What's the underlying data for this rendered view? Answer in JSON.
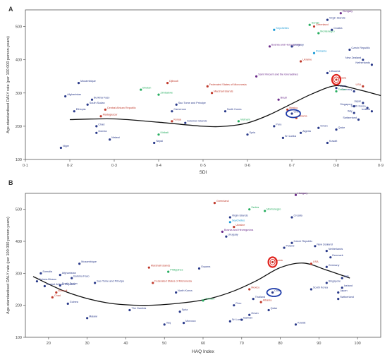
{
  "chart_data": [
    {
      "panel_letter": "A",
      "type": "scatter",
      "xlabel": "SDI",
      "ylabel": "Age-standardised DALY rate (per 100 000 person-years)",
      "xlim": [
        0.1,
        0.9
      ],
      "ylim": [
        100,
        550
      ],
      "xticks": [
        "0·1",
        "0·2",
        "0·3",
        "0·4",
        "0·5",
        "0·6",
        "0·7",
        "0·8",
        "0·9"
      ],
      "yticks": [
        "100",
        "200",
        "300",
        "400",
        "500"
      ],
      "grid": false,
      "points": [
        {
          "label": "Niger",
          "x": 0.18,
          "y": 135,
          "color": "#2a3a8a"
        },
        {
          "label": "Afghanistan",
          "x": 0.19,
          "y": 290,
          "color": "#2a3a8a"
        },
        {
          "label": "Ethiopia",
          "x": 0.21,
          "y": 245,
          "color": "#2a3a8a"
        },
        {
          "label": "Mozambique",
          "x": 0.22,
          "y": 330,
          "color": "#2a3a8a"
        },
        {
          "label": "Burkina Faso",
          "x": 0.25,
          "y": 280,
          "color": "#2a3a8a"
        },
        {
          "label": "South Sudan",
          "x": 0.24,
          "y": 265,
          "color": "#2a3a8a"
        },
        {
          "label": "Madagascar",
          "x": 0.27,
          "y": 230,
          "color": "#c0392b"
        },
        {
          "label": "Central African Republic",
          "x": 0.28,
          "y": 250,
          "color": "#c0392b"
        },
        {
          "label": "Guinea",
          "x": 0.26,
          "y": 180,
          "color": "#2a3a8a"
        },
        {
          "label": "Malawi",
          "x": 0.29,
          "y": 160,
          "color": "#2a3a8a"
        },
        {
          "label": "Chad",
          "x": 0.26,
          "y": 200,
          "color": "#2a3a8a"
        },
        {
          "label": "Bhutan",
          "x": 0.36,
          "y": 310,
          "color": "#27ae60"
        },
        {
          "label": "Djibouti",
          "x": 0.42,
          "y": 330,
          "color": "#c0392b"
        },
        {
          "label": "Sao Tome and Principe",
          "x": 0.44,
          "y": 265,
          "color": "#2a3a8a"
        },
        {
          "label": "Solomon Islands",
          "x": 0.46,
          "y": 210,
          "color": "#2a3a8a"
        },
        {
          "label": "Kiribati",
          "x": 0.4,
          "y": 175,
          "color": "#27ae60"
        },
        {
          "label": "Nepal",
          "x": 0.39,
          "y": 150,
          "color": "#2a3a8a"
        },
        {
          "label": "Federated States of Micronesia",
          "x": 0.51,
          "y": 320,
          "color": "#c0392b"
        },
        {
          "label": "Marshall Islands",
          "x": 0.52,
          "y": 300,
          "color": "#c0392b"
        },
        {
          "label": "North Korea",
          "x": 0.55,
          "y": 245,
          "color": "#2a3a8a"
        },
        {
          "label": "Saint Vincent and the Grenadines",
          "x": 0.62,
          "y": 350,
          "color": "#6a2a8a"
        },
        {
          "label": "Bosnia and Herzegovina",
          "x": 0.65,
          "y": 440,
          "color": "#6a2a8a"
        },
        {
          "label": "Seychelles",
          "x": 0.66,
          "y": 490,
          "color": "#1a9ad6"
        },
        {
          "label": "Uruguay",
          "x": 0.7,
          "y": 440,
          "color": "#2a3a8a"
        },
        {
          "label": "Ukraine",
          "x": 0.72,
          "y": 395,
          "color": "#c0392b"
        },
        {
          "label": "Serbia",
          "x": 0.74,
          "y": 505,
          "color": "#27ae60"
        },
        {
          "label": "Montenegro",
          "x": 0.76,
          "y": 480,
          "color": "#27ae60"
        },
        {
          "label": "Virgin Islands",
          "x": 0.78,
          "y": 520,
          "color": "#2a3a8a"
        },
        {
          "label": "Croatia",
          "x": 0.79,
          "y": 490,
          "color": "#2a3a8a"
        },
        {
          "label": "Greenland",
          "x": 0.75,
          "y": 500,
          "color": "#c0392b"
        },
        {
          "label": "Hungary",
          "x": 0.81,
          "y": 540,
          "color": "#6a2a8a"
        },
        {
          "label": "Romania",
          "x": 0.75,
          "y": 420,
          "color": "#1a9ad6"
        },
        {
          "label": "Czech Republic",
          "x": 0.83,
          "y": 430,
          "color": "#2a3a8a"
        },
        {
          "label": "New Zealand",
          "x": 0.86,
          "y": 400,
          "color": "#2a3a8a"
        },
        {
          "label": "Netherlands",
          "x": 0.88,
          "y": 385,
          "color": "#2a3a8a"
        },
        {
          "label": "Germany",
          "x": 0.84,
          "y": 305,
          "color": "#2a3a8a"
        },
        {
          "label": "USA",
          "x": 0.86,
          "y": 320,
          "color": "#c0392b"
        },
        {
          "label": "Japan",
          "x": 0.86,
          "y": 270,
          "color": "#2a3a8a"
        },
        {
          "label": "Singapore",
          "x": 0.84,
          "y": 260,
          "color": "#2a3a8a"
        },
        {
          "label": "South Korea",
          "x": 0.87,
          "y": 255,
          "color": "#2a3a8a"
        },
        {
          "label": "Iceland",
          "x": 0.88,
          "y": 245,
          "color": "#2a3a8a"
        },
        {
          "label": "Switzerland",
          "x": 0.85,
          "y": 220,
          "color": "#2a3a8a"
        },
        {
          "label": "Italy",
          "x": 0.84,
          "y": 240,
          "color": "#2a3a8a"
        },
        {
          "label": "Taiwan",
          "x": 0.8,
          "y": 305,
          "color": "#27ae60"
        },
        {
          "label": "Lithuania",
          "x": 0.78,
          "y": 360,
          "color": "#2a3a8a"
        },
        {
          "label": "Peru",
          "x": 0.66,
          "y": 200,
          "color": "#2a3a8a"
        },
        {
          "label": "Sri Lanka",
          "x": 0.68,
          "y": 165,
          "color": "#2a3a8a"
        },
        {
          "label": "Albania",
          "x": 0.71,
          "y": 225,
          "color": "#c0392b"
        },
        {
          "label": "Algeria",
          "x": 0.72,
          "y": 180,
          "color": "#2a3a8a"
        },
        {
          "label": "Oman",
          "x": 0.76,
          "y": 195,
          "color": "#2a3a8a"
        },
        {
          "label": "Kuwait",
          "x": 0.78,
          "y": 150,
          "color": "#2a3a8a"
        },
        {
          "label": "Qatar",
          "x": 0.8,
          "y": 190,
          "color": "#2a3a8a"
        },
        {
          "label": "China",
          "x": 0.7,
          "y": 238,
          "color": "#2a3a8a"
        },
        {
          "label": "Mexico",
          "x": 0.69,
          "y": 250,
          "color": "#c0392b"
        },
        {
          "label": "Brazil",
          "x": 0.67,
          "y": 280,
          "color": "#6a2a8a"
        },
        {
          "label": "Russia",
          "x": 0.8,
          "y": 340,
          "color": "#c0392b"
        },
        {
          "label": "Poland",
          "x": 0.8,
          "y": 315,
          "color": "#2a3a8a"
        },
        {
          "label": "Vietnam",
          "x": 0.58,
          "y": 215,
          "color": "#27ae60"
        },
        {
          "label": "Syria",
          "x": 0.6,
          "y": 175,
          "color": "#2a3a8a"
        },
        {
          "label": "Kenya",
          "x": 0.43,
          "y": 215,
          "color": "#c0392b"
        },
        {
          "label": "Cameroon",
          "x": 0.43,
          "y": 245,
          "color": "#2a3a8a"
        },
        {
          "label": "Zimbabwe",
          "x": 0.4,
          "y": 295,
          "color": "#27ae60"
        }
      ],
      "labels": [
        "Niger",
        "Afghanistan",
        "Ethiopia",
        "Mozambique",
        "Burkina Faso",
        "South Sudan",
        "Madagascar",
        "Central African Republic",
        "Guinea",
        "Malawi",
        "Chad",
        "Bhutan",
        "Djibouti",
        "Sao Tome and Principe",
        "Solomon Islands",
        "Kiribati",
        "Nepal",
        "Federated States of Micronesia",
        "Marshall Islands",
        "North Korea",
        "Saint Vincent and the Grenadines",
        "Bosnia and Herzegovina",
        "Seychelles",
        "Uruguay",
        "Ukraine",
        "Serbia",
        "Montenegro",
        "Virgin Islands",
        "Croatia",
        "Greenland",
        "Hungary",
        "Romania",
        "Czech Republic",
        "New Zealand",
        "Netherlands",
        "Germany",
        "USA",
        "Japan",
        "Singapore",
        "South Korea",
        "Iceland",
        "Switzerland",
        "Italy",
        "Taiwan",
        "Lithuania",
        "Peru",
        "Sri Lanka",
        "Albania",
        "Algeria",
        "Oman",
        "Kuwait",
        "Qatar",
        "China",
        "Mexico",
        "Brazil",
        "Russia",
        "Poland",
        "Vietnam",
        "Syria",
        "Kenya",
        "Cameroon",
        "Zimbabwe"
      ],
      "trend_curve": {
        "x": [
          0.2,
          0.3,
          0.4,
          0.5,
          0.55,
          0.6,
          0.65,
          0.7,
          0.75,
          0.8,
          0.85,
          0.9
        ],
        "y": [
          220,
          222,
          212,
          200,
          200,
          210,
          235,
          268,
          300,
          322,
          310,
          292
        ]
      },
      "highlights": [
        {
          "country": "China",
          "style": "ellipse",
          "color": "#1c3aa9"
        },
        {
          "country": "Russia",
          "style": "ellipse",
          "color": "#e0211b"
        }
      ]
    },
    {
      "panel_letter": "B",
      "type": "scatter",
      "xlabel": "HAQ Index",
      "ylabel": "Age-standardised DALY rate (per 100 000 person-years)",
      "xlim": [
        14,
        106
      ],
      "ylim": [
        100,
        550
      ],
      "xticks": [
        "20",
        "30",
        "40",
        "50",
        "60",
        "70",
        "80",
        "90",
        "100"
      ],
      "yticks": [
        "100",
        "200",
        "300",
        "400",
        "500"
      ],
      "grid": false,
      "points": [
        {
          "label": "Somalia",
          "x": 18,
          "y": 300,
          "color": "#2a3a8a"
        },
        {
          "label": "Afghanistan",
          "x": 23,
          "y": 295,
          "color": "#2a3a8a"
        },
        {
          "label": "Mozambique",
          "x": 28,
          "y": 330,
          "color": "#2a3a8a"
        },
        {
          "label": "Central African Republic",
          "x": 19,
          "y": 260,
          "color": "#2a3a8a"
        },
        {
          "label": "Guinea-Bissau",
          "x": 17,
          "y": 275,
          "color": "#2a3a8a"
        },
        {
          "label": "Burkina Faso",
          "x": 26,
          "y": 285,
          "color": "#2a3a8a"
        },
        {
          "label": "South Sudan",
          "x": 23,
          "y": 262,
          "color": "#2a3a8a"
        },
        {
          "label": "Burundi",
          "x": 22,
          "y": 240,
          "color": "#c0392b"
        },
        {
          "label": "Chad",
          "x": 21,
          "y": 225,
          "color": "#c0392b"
        },
        {
          "label": "Guinea",
          "x": 25,
          "y": 205,
          "color": "#2a3a8a"
        },
        {
          "label": "Malawi",
          "x": 30,
          "y": 160,
          "color": "#2a3a8a"
        },
        {
          "label": "Sao Tome and Principe",
          "x": 32,
          "y": 270,
          "color": "#2a3a8a"
        },
        {
          "label": "Marshall Islands",
          "x": 46,
          "y": 318,
          "color": "#c0392b"
        },
        {
          "label": "Federated States of Micronesia",
          "x": 47,
          "y": 270,
          "color": "#c0392b"
        },
        {
          "label": "The Gambia",
          "x": 41,
          "y": 185,
          "color": "#2a3a8a"
        },
        {
          "label": "Philippines",
          "x": 51,
          "y": 305,
          "color": "#27ae60"
        },
        {
          "label": "North Korea",
          "x": 53,
          "y": 240,
          "color": "#2a3a8a"
        },
        {
          "label": "Guyana",
          "x": 59,
          "y": 315,
          "color": "#2a3a8a"
        },
        {
          "label": "Greenland",
          "x": 63,
          "y": 520,
          "color": "#c0392b"
        },
        {
          "label": "Virgin Islands",
          "x": 67,
          "y": 475,
          "color": "#2a3a8a"
        },
        {
          "label": "Serbia",
          "x": 72,
          "y": 500,
          "color": "#27ae60"
        },
        {
          "label": "Montenegro",
          "x": 76,
          "y": 495,
          "color": "#27ae60"
        },
        {
          "label": "Hungary",
          "x": 84,
          "y": 545,
          "color": "#6a2a8a"
        },
        {
          "label": "Croatia",
          "x": 83,
          "y": 475,
          "color": "#2a3a8a"
        },
        {
          "label": "Seychelles",
          "x": 67,
          "y": 460,
          "color": "#1a9ad6"
        },
        {
          "label": "Ukraine",
          "x": 68,
          "y": 445,
          "color": "#c0392b"
        },
        {
          "label": "Bosnia and Herzegovina",
          "x": 65,
          "y": 430,
          "color": "#6a2a8a"
        },
        {
          "label": "Uruguay",
          "x": 66,
          "y": 415,
          "color": "#2a3a8a"
        },
        {
          "label": "Czech Republic",
          "x": 83,
          "y": 395,
          "color": "#2a3a8a"
        },
        {
          "label": "Poland",
          "x": 81,
          "y": 380,
          "color": "#2a3a8a"
        },
        {
          "label": "Russia",
          "x": 78,
          "y": 335,
          "color": "#c0392b"
        },
        {
          "label": "New Zealand",
          "x": 89,
          "y": 385,
          "color": "#2a3a8a"
        },
        {
          "label": "Netherlands",
          "x": 92,
          "y": 370,
          "color": "#2a3a8a"
        },
        {
          "label": "Denmark",
          "x": 93,
          "y": 350,
          "color": "#2a3a8a"
        },
        {
          "label": "Germany",
          "x": 92,
          "y": 320,
          "color": "#2a3a8a"
        },
        {
          "label": "USA",
          "x": 88,
          "y": 330,
          "color": "#c0392b"
        },
        {
          "label": "Japan",
          "x": 95,
          "y": 240,
          "color": "#2a3a8a"
        },
        {
          "label": "Iceland",
          "x": 96,
          "y": 255,
          "color": "#2a3a8a"
        },
        {
          "label": "Switzerland",
          "x": 95,
          "y": 220,
          "color": "#2a3a8a"
        },
        {
          "label": "South Korea",
          "x": 88,
          "y": 250,
          "color": "#2a3a8a"
        },
        {
          "label": "Singapore",
          "x": 92,
          "y": 270,
          "color": "#2a3a8a"
        },
        {
          "label": "Italy",
          "x": 96,
          "y": 285,
          "color": "#2a3a8a"
        },
        {
          "label": "Mexico",
          "x": 72,
          "y": 250,
          "color": "#c0392b"
        },
        {
          "label": "China",
          "x": 78,
          "y": 240,
          "color": "#2a3a8a"
        },
        {
          "label": "Peru",
          "x": 68,
          "y": 200,
          "color": "#2a3a8a"
        },
        {
          "label": "Sri Lanka",
          "x": 67,
          "y": 150,
          "color": "#2a3a8a"
        },
        {
          "label": "Albania",
          "x": 75,
          "y": 210,
          "color": "#c0392b"
        },
        {
          "label": "Oman",
          "x": 72,
          "y": 170,
          "color": "#2a3a8a"
        },
        {
          "label": "Kuwait",
          "x": 84,
          "y": 140,
          "color": "#2a3a8a"
        },
        {
          "label": "Qatar",
          "x": 77,
          "y": 185,
          "color": "#2a3a8a"
        },
        {
          "label": "Vietnam",
          "x": 60,
          "y": 215,
          "color": "#27ae60"
        },
        {
          "label": "Syria",
          "x": 54,
          "y": 180,
          "color": "#2a3a8a"
        },
        {
          "label": "Iraq",
          "x": 50,
          "y": 140,
          "color": "#2a3a8a"
        },
        {
          "label": "Morocco",
          "x": 55,
          "y": 145,
          "color": "#2a3a8a"
        },
        {
          "label": "Thailand",
          "x": 73,
          "y": 220,
          "color": "#2a3a8a"
        },
        {
          "label": "Bahrain",
          "x": 70,
          "y": 155,
          "color": "#2a3a8a"
        }
      ],
      "labels": [
        "Somalia",
        "Afghanistan",
        "Mozambique",
        "Central African Republic",
        "Guinea-Bissau",
        "Burkina Faso",
        "South Sudan",
        "Burundi",
        "Chad",
        "Guinea",
        "Malawi",
        "Sao Tome and Principe",
        "Marshall Islands",
        "Federated States of Micronesia",
        "The Gambia",
        "Philippines",
        "North Korea",
        "Guyana",
        "Greenland",
        "Virgin Islands",
        "Serbia",
        "Montenegro",
        "Hungary",
        "Croatia",
        "Seychelles",
        "Ukraine",
        "Bosnia and Herzegovina",
        "Uruguay",
        "Czech Republic",
        "Poland",
        "Russia",
        "New Zealand",
        "Netherlands",
        "Denmark",
        "Germany",
        "USA",
        "Japan",
        "Iceland",
        "Switzerland",
        "South Korea",
        "Singapore",
        "Italy",
        "Mexico",
        "China",
        "Peru",
        "Sri Lanka",
        "Albania",
        "Oman",
        "Kuwait",
        "Qatar",
        "Vietnam",
        "Syria",
        "Iraq",
        "Morocco",
        "Thailand",
        "Bahrain"
      ],
      "trend_curve": {
        "x": [
          16,
          25,
          35,
          45,
          55,
          62,
          68,
          74,
          80,
          86,
          92,
          98
        ],
        "y": [
          290,
          240,
          208,
          200,
          208,
          222,
          245,
          278,
          318,
          332,
          310,
          285
        ]
      },
      "highlights": [
        {
          "country": "China",
          "style": "ellipse",
          "color": "#1c3aa9"
        },
        {
          "country": "Russia",
          "style": "ellipse",
          "color": "#e0211b"
        }
      ]
    }
  ]
}
